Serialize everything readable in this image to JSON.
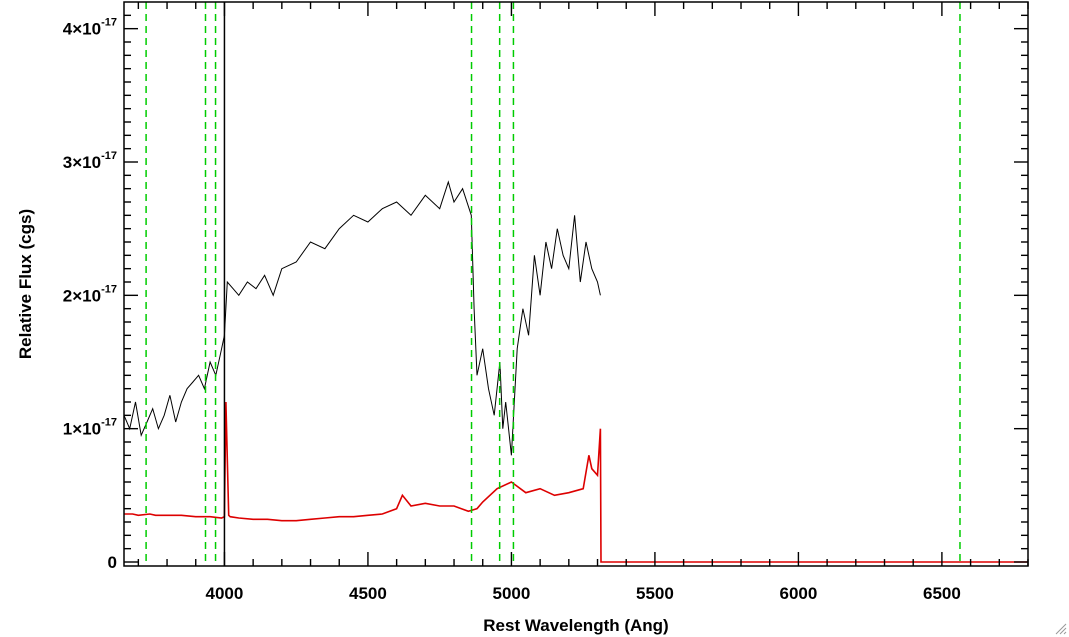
{
  "chart_data": {
    "type": "line",
    "title": "",
    "xlabel": "Rest Wavelength (Ang)",
    "ylabel": "Relative Flux (cgs)",
    "xlim": [
      3650,
      6800
    ],
    "ylim": [
      -3e-19,
      4.2e-17
    ],
    "x_ticks": [
      {
        "value": 4000,
        "label": "4000"
      },
      {
        "value": 4500,
        "label": "4500"
      },
      {
        "value": 5000,
        "label": "5000"
      },
      {
        "value": 5500,
        "label": "5500"
      },
      {
        "value": 6000,
        "label": "6000"
      },
      {
        "value": 6500,
        "label": "6500"
      }
    ],
    "y_ticks": [
      {
        "value": 0,
        "mantissa": "0",
        "exponent": ""
      },
      {
        "value": 1e-17,
        "mantissa": "1×10",
        "exponent": "-17"
      },
      {
        "value": 2e-17,
        "mantissa": "2×10",
        "exponent": "-17"
      },
      {
        "value": 3e-17,
        "mantissa": "3×10",
        "exponent": "-17"
      },
      {
        "value": 4e-17,
        "mantissa": "4×10",
        "exponent": "-17"
      }
    ],
    "grid": false,
    "series": [
      {
        "color": "#000000",
        "x": [
          3650,
          3670,
          3690,
          3710,
          3730,
          3750,
          3770,
          3790,
          3810,
          3830,
          3850,
          3870,
          3890,
          3910,
          3930,
          3950,
          3970,
          3990,
          4000,
          4010,
          4030,
          4050,
          4080,
          4110,
          4140,
          4170,
          4200,
          4250,
          4300,
          4350,
          4400,
          4450,
          4500,
          4550,
          4600,
          4650,
          4700,
          4750,
          4780,
          4800,
          4830,
          4860,
          4870,
          4880,
          4900,
          4920,
          4940,
          4960,
          4970,
          4980,
          5000,
          5020,
          5040,
          5060,
          5080,
          5100,
          5120,
          5140,
          5160,
          5180,
          5200,
          5220,
          5240,
          5260,
          5280,
          5300,
          5310
        ],
        "y": [
          1.1e-17,
          1e-17,
          1.2e-17,
          9.5e-18,
          1.05e-17,
          1.15e-17,
          1e-17,
          1.1e-17,
          1.25e-17,
          1.05e-17,
          1.2e-17,
          1.3e-17,
          1.35e-17,
          1.4e-17,
          1.3e-17,
          1.5e-17,
          1.4e-17,
          1.6e-17,
          1.7e-17,
          2.1e-17,
          2.05e-17,
          2e-17,
          2.1e-17,
          2.05e-17,
          2.15e-17,
          2e-17,
          2.2e-17,
          2.25e-17,
          2.4e-17,
          2.35e-17,
          2.5e-17,
          2.6e-17,
          2.55e-17,
          2.65e-17,
          2.7e-17,
          2.6e-17,
          2.75e-17,
          2.65e-17,
          2.85e-17,
          2.7e-17,
          2.8e-17,
          2.6e-17,
          1.9e-17,
          1.4e-17,
          1.6e-17,
          1.3e-17,
          1.1e-17,
          1.5e-17,
          1e-17,
          1.2e-17,
          8e-18,
          1.6e-17,
          1.9e-17,
          1.7e-17,
          2.3e-17,
          2e-17,
          2.4e-17,
          2.2e-17,
          2.5e-17,
          2.3e-17,
          2.2e-17,
          2.6e-17,
          2.1e-17,
          2.4e-17,
          2.2e-17,
          2.1e-17,
          2e-17
        ]
      },
      {
        "color": "#dd0000",
        "x": [
          3650,
          3680,
          3700,
          3740,
          3760,
          3800,
          3850,
          3900,
          3950,
          3990,
          4000,
          4005,
          4015,
          4020,
          4050,
          4100,
          4150,
          4200,
          4250,
          4300,
          4350,
          4400,
          4450,
          4500,
          4550,
          4600,
          4620,
          4650,
          4700,
          4750,
          4800,
          4850,
          4880,
          4900,
          4950,
          5000,
          5050,
          5100,
          5150,
          5200,
          5250,
          5270,
          5280,
          5300,
          5310,
          5312,
          5330,
          5400,
          5600,
          5800,
          6000,
          6200,
          6400,
          6600,
          6800
        ],
        "y": [
          3.6e-18,
          3.6e-18,
          3.5e-18,
          3.6e-18,
          3.5e-18,
          3.5e-18,
          3.5e-18,
          3.4e-18,
          3.4e-18,
          3.3e-18,
          3.4e-18,
          1.2e-17,
          3.5e-18,
          3.4e-18,
          3.3e-18,
          3.2e-18,
          3.2e-18,
          3.1e-18,
          3.1e-18,
          3.2e-18,
          3.3e-18,
          3.4e-18,
          3.4e-18,
          3.5e-18,
          3.6e-18,
          4e-18,
          5e-18,
          4.2e-18,
          4.4e-18,
          4.2e-18,
          4.2e-18,
          3.8e-18,
          4e-18,
          4.5e-18,
          5.5e-18,
          6e-18,
          5.2e-18,
          5.5e-18,
          5e-18,
          5.2e-18,
          5.5e-18,
          8e-18,
          7e-18,
          6.5e-18,
          1e-17,
          0.0,
          0.0,
          0.0,
          0.0,
          0.0,
          0.0,
          0.0,
          0.0,
          0.0,
          0.0
        ]
      }
    ],
    "vertical_markers": [
      {
        "x": 3727,
        "color": "#00cc00",
        "style": "dashed"
      },
      {
        "x": 3934,
        "color": "#00cc00",
        "style": "dashed"
      },
      {
        "x": 3969,
        "color": "#00cc00",
        "style": "dashed"
      },
      {
        "x": 4861,
        "color": "#00cc00",
        "style": "dashed"
      },
      {
        "x": 4959,
        "color": "#00cc00",
        "style": "dashed"
      },
      {
        "x": 5007,
        "color": "#00cc00",
        "style": "dashed"
      },
      {
        "x": 6563,
        "color": "#00cc00",
        "style": "dashed"
      },
      {
        "x": 4000,
        "color": "#000000",
        "style": "solid"
      }
    ]
  },
  "window": {
    "resize_grip_icon": "resize-grip-icon"
  }
}
